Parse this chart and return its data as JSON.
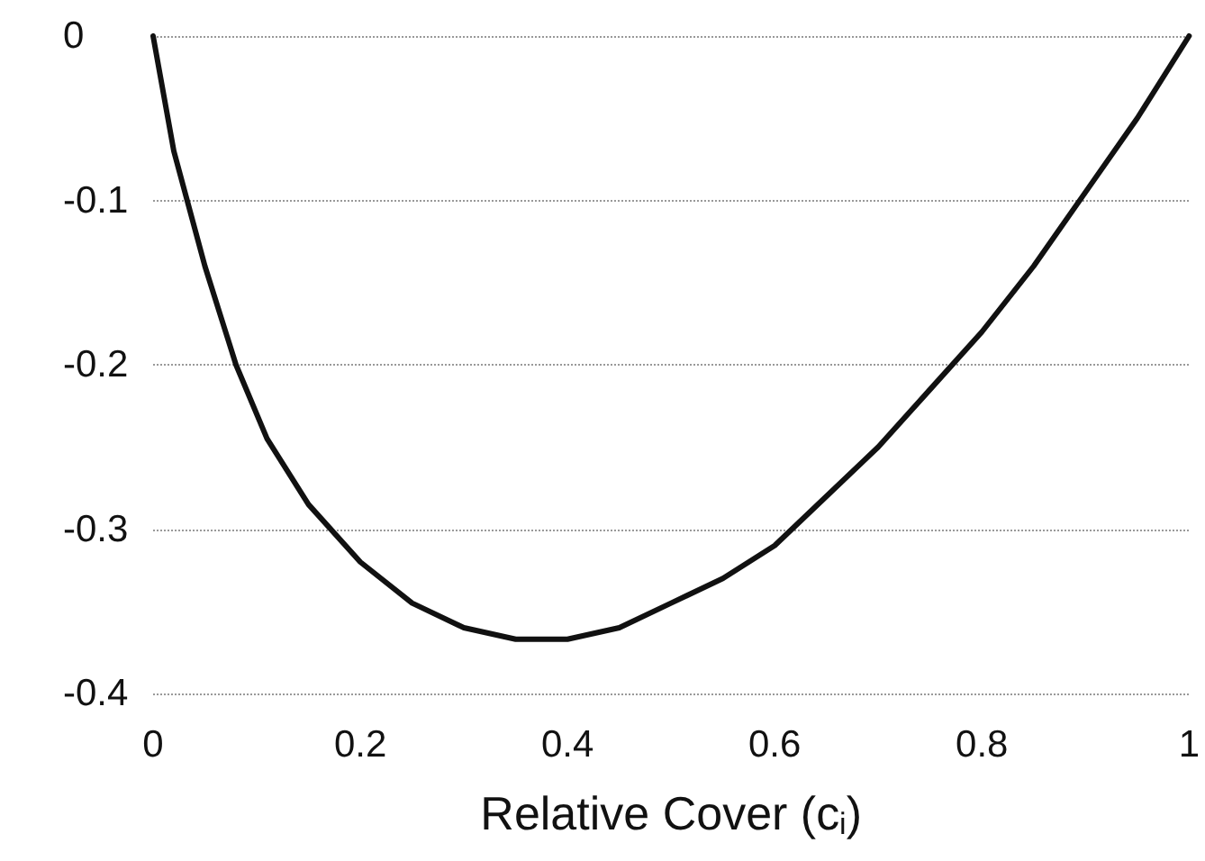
{
  "chart_data": {
    "type": "line",
    "xlabel": "Relative Cover (c$_{i}$)",
    "x": [
      0,
      0.02,
      0.05,
      0.08,
      0.11,
      0.15,
      0.2,
      0.25,
      0.3,
      0.35,
      0.4,
      0.45,
      0.5,
      0.55,
      0.6,
      0.65,
      0.7,
      0.75,
      0.8,
      0.85,
      0.9,
      0.95,
      1
    ],
    "series": [
      {
        "color": "#111111",
        "values": [
          0,
          -0.07,
          -0.14,
          -0.2,
          -0.245,
          -0.285,
          -0.32,
          -0.345,
          -0.36,
          -0.367,
          -0.367,
          -0.36,
          -0.345,
          -0.33,
          -0.31,
          -0.28,
          -0.25,
          -0.215,
          -0.18,
          -0.14,
          -0.095,
          -0.05,
          0
        ]
      }
    ],
    "xlim": [
      0,
      1
    ],
    "xticks": [
      0,
      0.2,
      0.4,
      0.6,
      0.8,
      1
    ],
    "ylim": [
      -0.4,
      0
    ],
    "yticks": [
      -0.4,
      -0.3,
      -0.2,
      -0.1,
      0
    ],
    "grid": "y",
    "marker": "none",
    "line_style": "solid"
  }
}
